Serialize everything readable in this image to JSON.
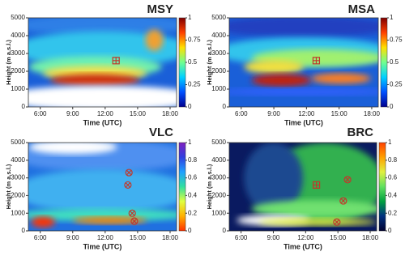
{
  "chart_data": [
    {
      "type": "heatmap",
      "title": "MSY",
      "xlabel": "Time (UTC)",
      "ylabel": "Height (m a.s.l.)",
      "xlim": [
        4.9,
        18.6
      ],
      "xticks": [
        {
          "value": 6,
          "label": "6:00"
        },
        {
          "value": 9,
          "label": "9:00"
        },
        {
          "value": 12,
          "label": "12:00"
        },
        {
          "value": 15,
          "label": "15:00"
        },
        {
          "value": 18,
          "label": "18:00"
        }
      ],
      "ylim": [
        0,
        5000
      ],
      "yticks": [
        0,
        1000,
        2000,
        3000,
        4000,
        5000
      ],
      "clim": [
        0,
        1
      ],
      "cticks": [
        0,
        0.25,
        0.5,
        0.75,
        1
      ],
      "colorbar_colors": [
        "#00008f",
        "#0050ff",
        "#00d0ff",
        "#70ff90",
        "#ffe000",
        "#ff4000",
        "#800000"
      ],
      "series": [
        {
          "marker": "square",
          "color": "#c0392b",
          "x": [
            13.0
          ],
          "y": [
            2600
          ]
        }
      ]
    },
    {
      "type": "heatmap",
      "title": "MSA",
      "xlabel": "Time (UTC)",
      "ylabel": "Height (m a.s.l.)",
      "xlim": [
        4.9,
        18.6
      ],
      "xticks": [
        {
          "value": 6,
          "label": "6:00"
        },
        {
          "value": 9,
          "label": "9:00"
        },
        {
          "value": 12,
          "label": "12:00"
        },
        {
          "value": 15,
          "label": "15:00"
        },
        {
          "value": 18,
          "label": "18:00"
        }
      ],
      "ylim": [
        0,
        5000
      ],
      "yticks": [
        0,
        1000,
        2000,
        3000,
        4000,
        5000
      ],
      "clim": [
        0,
        1
      ],
      "cticks": [
        0,
        0.25,
        0.5,
        0.75,
        1
      ],
      "colorbar_colors": [
        "#00008f",
        "#0050ff",
        "#00d0ff",
        "#70ff90",
        "#ffe000",
        "#ff4000",
        "#800000"
      ],
      "series": [
        {
          "marker": "square",
          "color": "#c0392b",
          "x": [
            12.9
          ],
          "y": [
            2600
          ]
        }
      ]
    },
    {
      "type": "heatmap",
      "title": "VLC",
      "xlabel": "Time (UTC)",
      "ylabel": "Height (m a.s.l.)",
      "xlim": [
        4.9,
        18.6
      ],
      "xticks": [
        {
          "value": 6,
          "label": "6:00"
        },
        {
          "value": 9,
          "label": "9:00"
        },
        {
          "value": 12,
          "label": "12:00"
        },
        {
          "value": 15,
          "label": "15:00"
        },
        {
          "value": 18,
          "label": "18:00"
        }
      ],
      "ylim": [
        0,
        5000
      ],
      "yticks": [
        0,
        1000,
        2000,
        3000,
        4000,
        5000
      ],
      "clim": [
        0,
        1
      ],
      "cticks": [
        0,
        0.2,
        0.4,
        0.6,
        0.8,
        1
      ],
      "colorbar_colors": [
        "#ff3000",
        "#ffb000",
        "#e0ff40",
        "#30e0a0",
        "#20a0ff",
        "#3040e0",
        "#8020c0"
      ],
      "series": [
        {
          "marker": "circle",
          "color": "#c0392b",
          "x": [
            14.2,
            14.1,
            14.5,
            14.7
          ],
          "y": [
            3300,
            2600,
            1000,
            550
          ]
        }
      ]
    },
    {
      "type": "heatmap",
      "title": "BRC",
      "xlabel": "Time (UTC)",
      "ylabel": "Height (m a.s.l.)",
      "xlim": [
        4.9,
        18.6
      ],
      "xticks": [
        {
          "value": 6,
          "label": "6:00"
        },
        {
          "value": 9,
          "label": "9:00"
        },
        {
          "value": 12,
          "label": "12:00"
        },
        {
          "value": 15,
          "label": "15:00"
        },
        {
          "value": 18,
          "label": "18:00"
        }
      ],
      "ylim": [
        0,
        5000
      ],
      "yticks": [
        0,
        1000,
        2000,
        3000,
        4000,
        5000
      ],
      "clim": [
        0,
        1
      ],
      "cticks": [
        0,
        0.2,
        0.4,
        0.6,
        0.8,
        1
      ],
      "colorbar_colors": [
        "#000030",
        "#003080",
        "#00a040",
        "#60e060",
        "#e0f040",
        "#ffa000",
        "#ff4000"
      ],
      "series": [
        {
          "marker": "square",
          "color": "#c0392b",
          "x": [
            13.0
          ],
          "y": [
            2600
          ]
        },
        {
          "marker": "circle",
          "color": "#c0392b",
          "x": [
            15.9,
            15.5,
            14.9
          ],
          "y": [
            2900,
            1700,
            500
          ]
        }
      ]
    }
  ]
}
